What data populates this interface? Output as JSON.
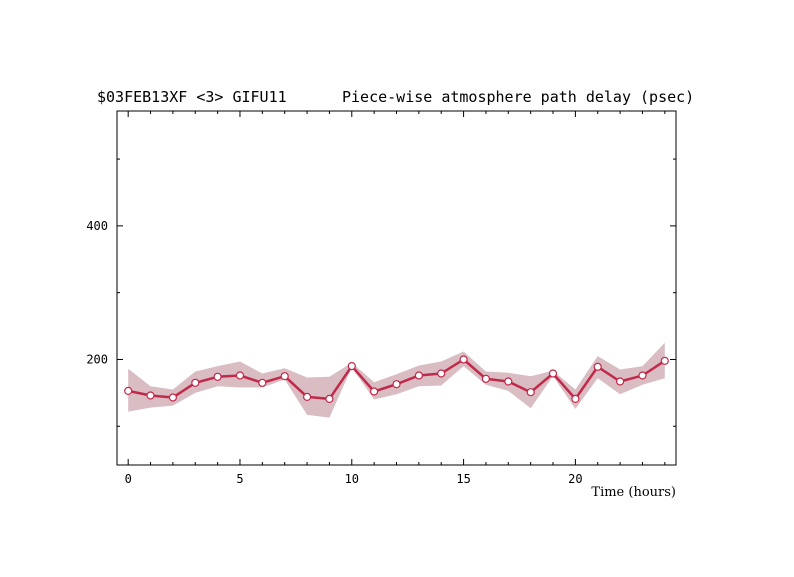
{
  "chart_data": {
    "type": "line",
    "title_left": "$03FEB13XF <3>  GIFU11",
    "title_right": "Piece-wise atmosphere path delay (psec)",
    "xlabel": "Time (hours)",
    "ylabel": "",
    "xlim": [
      -0.5,
      24.5
    ],
    "ylim": [
      42,
      572
    ],
    "x_ticks": [
      0,
      5,
      10,
      15,
      20
    ],
    "y_ticks": [
      200,
      400
    ],
    "grid": false,
    "colors": {
      "line": "#c0294a",
      "band": "#d9bdc3",
      "marker_fill": "#ffffff"
    },
    "series": [
      {
        "x": [
          0,
          1,
          2,
          3,
          4,
          5,
          6,
          7,
          8,
          9,
          10,
          11,
          12,
          13,
          14,
          15,
          16,
          17,
          18,
          19,
          20,
          21,
          22,
          23,
          24
        ],
        "values": [
          153,
          146,
          143,
          165,
          174,
          176,
          165,
          175,
          144,
          141,
          190,
          152,
          163,
          176,
          179,
          200,
          171,
          167,
          151,
          179,
          141,
          189,
          167,
          176,
          198
        ],
        "upper": [
          186,
          160,
          155,
          182,
          190,
          197,
          179,
          187,
          173,
          174,
          195,
          166,
          178,
          191,
          197,
          212,
          182,
          180,
          175,
          183,
          155,
          205,
          185,
          190,
          225
        ],
        "lower": [
          122,
          128,
          131,
          150,
          160,
          158,
          158,
          170,
          117,
          113,
          188,
          140,
          148,
          160,
          161,
          190,
          162,
          153,
          127,
          175,
          126,
          172,
          148,
          162,
          172
        ]
      }
    ]
  }
}
